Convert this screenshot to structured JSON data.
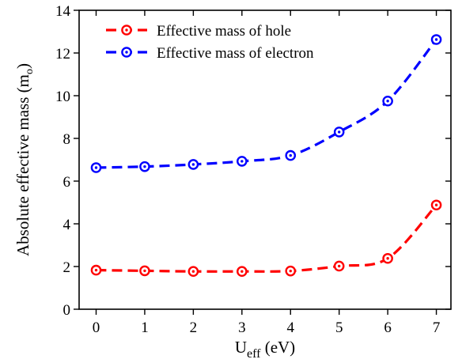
{
  "chart_data": {
    "type": "line",
    "x": [
      0,
      1,
      2,
      3,
      4,
      5,
      6,
      7
    ],
    "xlim": [
      -0.35,
      7.3
    ],
    "ylim": [
      0,
      14
    ],
    "xticks": [
      0,
      1,
      2,
      3,
      4,
      5,
      6,
      7
    ],
    "yticks": [
      0,
      2,
      4,
      6,
      8,
      10,
      12,
      14
    ],
    "xlabel": {
      "main": "U",
      "sub": "eff",
      "suffix": " (eV)"
    },
    "ylabel": {
      "main": "Absolute effective mass (m",
      "sub": "o",
      "suffix": ")"
    },
    "grid": false,
    "legend_position": "top-left",
    "series": [
      {
        "name": "Effective mass of hole",
        "color": "#ff0000",
        "line_style": "dashed",
        "marker": "circle-dot",
        "values": [
          1.83,
          1.8,
          1.77,
          1.77,
          1.79,
          2.02,
          2.38,
          4.88
        ]
      },
      {
        "name": "Effective mass of electron",
        "color": "#0000ff",
        "line_style": "dashed",
        "marker": "circle-dot",
        "values": [
          6.63,
          6.68,
          6.78,
          6.93,
          7.2,
          8.3,
          9.75,
          12.63
        ]
      }
    ]
  }
}
